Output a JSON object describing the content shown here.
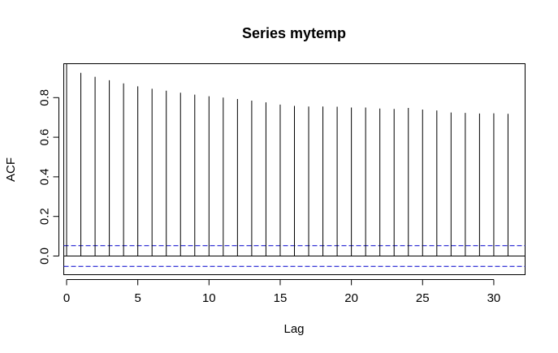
{
  "chart_data": {
    "type": "bar",
    "title": "Series  mytemp",
    "xlabel": "Lag",
    "ylabel": "ACF",
    "xlim": [
      0,
      31
    ],
    "ylim": [
      -0.07,
      0.93
    ],
    "x_ticks": [
      0,
      5,
      10,
      15,
      20,
      25,
      30
    ],
    "y_ticks": [
      0.0,
      0.2,
      0.4,
      0.6,
      0.8
    ],
    "y_tick_labels": [
      "0.0",
      "0.2",
      "0.4",
      "0.6",
      "0.8"
    ],
    "lags": [
      0,
      1,
      2,
      3,
      4,
      5,
      6,
      7,
      8,
      9,
      10,
      11,
      12,
      13,
      14,
      15,
      16,
      17,
      18,
      19,
      20,
      21,
      22,
      23,
      24,
      25,
      26,
      27,
      28,
      29,
      30,
      31
    ],
    "acf": [
      1.0,
      0.925,
      0.905,
      0.888,
      0.872,
      0.857,
      0.845,
      0.835,
      0.825,
      0.815,
      0.807,
      0.8,
      0.793,
      0.785,
      0.776,
      0.765,
      0.758,
      0.755,
      0.755,
      0.754,
      0.75,
      0.75,
      0.745,
      0.743,
      0.748,
      0.74,
      0.735,
      0.725,
      0.723,
      0.72,
      0.721,
      0.718
    ],
    "confidence_bounds": [
      0.052,
      -0.052
    ],
    "ci_color": "#0000cc",
    "bar_color": "#000000",
    "grid": false
  }
}
